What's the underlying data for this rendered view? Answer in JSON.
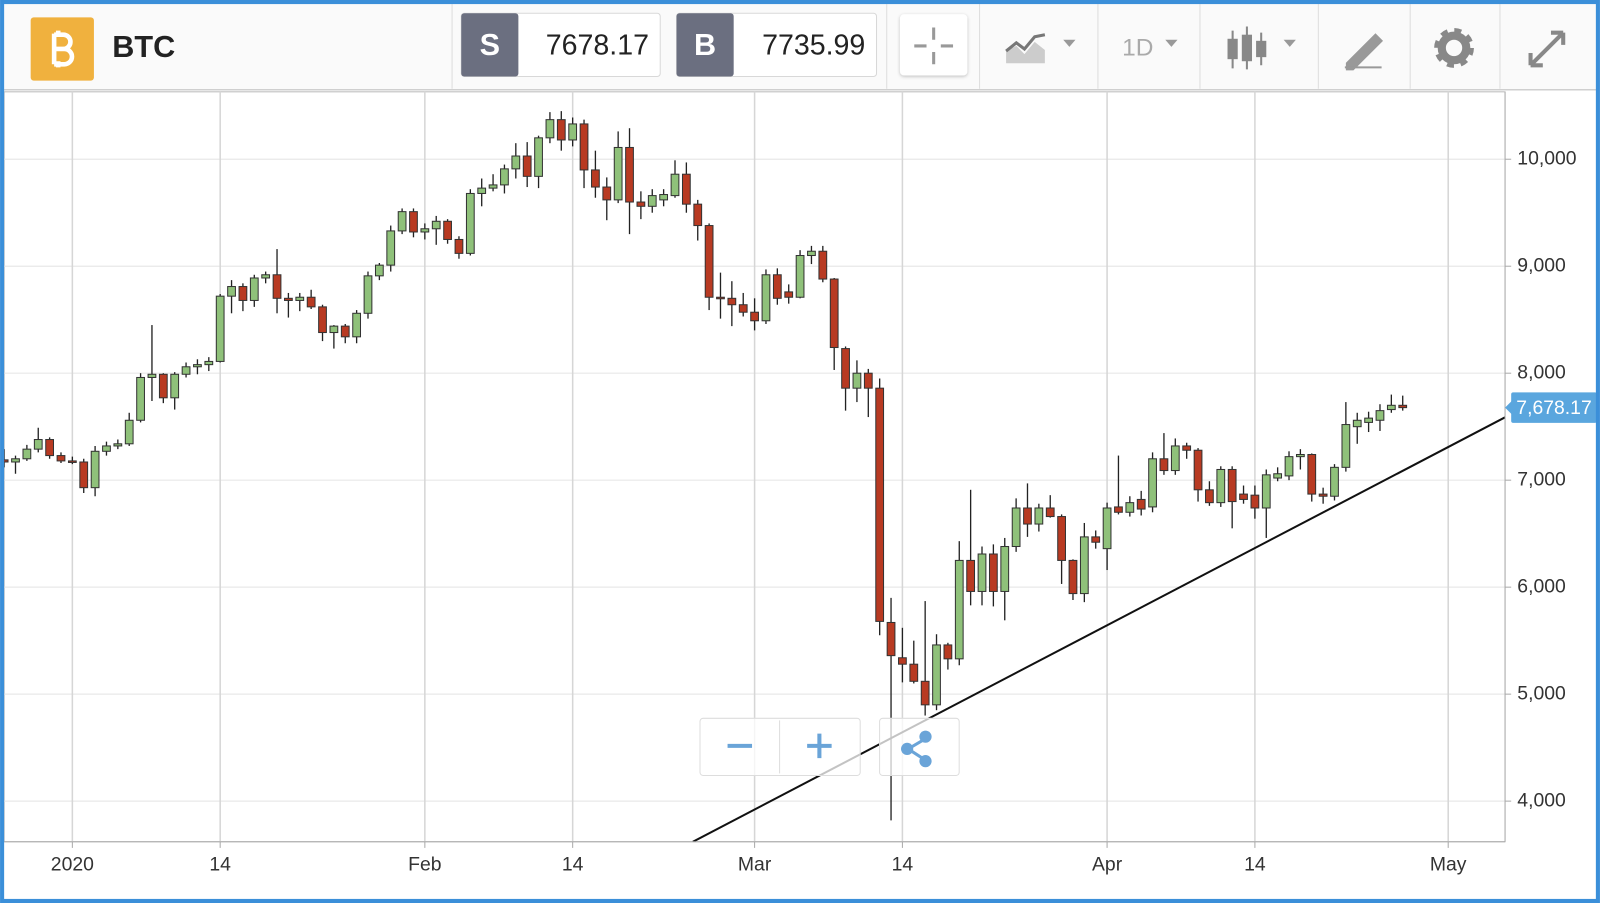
{
  "header": {
    "symbol": "BTC",
    "sell_label": "S",
    "sell": 7678.17,
    "buy_label": "B",
    "buy": 7735.99,
    "interval": "1D"
  },
  "chart_data": {
    "type": "candlestick",
    "grid": true,
    "up_color": "#8fc17a",
    "down_color": "#b83a22",
    "x": [
      "2019-12-26",
      "2019-12-27",
      "2019-12-28",
      "2019-12-29",
      "2019-12-30",
      "2019-12-31",
      "2020-01-01",
      "2020-01-02",
      "2020-01-03",
      "2020-01-04",
      "2020-01-05",
      "2020-01-06",
      "2020-01-07",
      "2020-01-08",
      "2020-01-09",
      "2020-01-10",
      "2020-01-11",
      "2020-01-12",
      "2020-01-13",
      "2020-01-14",
      "2020-01-15",
      "2020-01-16",
      "2020-01-17",
      "2020-01-18",
      "2020-01-19",
      "2020-01-20",
      "2020-01-21",
      "2020-01-22",
      "2020-01-23",
      "2020-01-24",
      "2020-01-25",
      "2020-01-26",
      "2020-01-27",
      "2020-01-28",
      "2020-01-29",
      "2020-01-30",
      "2020-01-31",
      "2020-02-01",
      "2020-02-02",
      "2020-02-03",
      "2020-02-04",
      "2020-02-05",
      "2020-02-06",
      "2020-02-07",
      "2020-02-08",
      "2020-02-09",
      "2020-02-10",
      "2020-02-11",
      "2020-02-12",
      "2020-02-13",
      "2020-02-14",
      "2020-02-15",
      "2020-02-16",
      "2020-02-17",
      "2020-02-18",
      "2020-02-19",
      "2020-02-20",
      "2020-02-21",
      "2020-02-22",
      "2020-02-23",
      "2020-02-24",
      "2020-02-25",
      "2020-02-26",
      "2020-02-27",
      "2020-02-28",
      "2020-02-29",
      "2020-03-01",
      "2020-03-02",
      "2020-03-03",
      "2020-03-04",
      "2020-03-05",
      "2020-03-06",
      "2020-03-07",
      "2020-03-08",
      "2020-03-09",
      "2020-03-10",
      "2020-03-11",
      "2020-03-12",
      "2020-03-13",
      "2020-03-14",
      "2020-03-15",
      "2020-03-16",
      "2020-03-17",
      "2020-03-18",
      "2020-03-19",
      "2020-03-20",
      "2020-03-21",
      "2020-03-22",
      "2020-03-23",
      "2020-03-24",
      "2020-03-25",
      "2020-03-26",
      "2020-03-27",
      "2020-03-28",
      "2020-03-29",
      "2020-03-30",
      "2020-03-31",
      "2020-04-01",
      "2020-04-02",
      "2020-04-03",
      "2020-04-04",
      "2020-04-05",
      "2020-04-06",
      "2020-04-07",
      "2020-04-08",
      "2020-04-09",
      "2020-04-10",
      "2020-04-11",
      "2020-04-12",
      "2020-04-13",
      "2020-04-14",
      "2020-04-15",
      "2020-04-16",
      "2020-04-17",
      "2020-04-18",
      "2020-04-19",
      "2020-04-20",
      "2020-04-21",
      "2020-04-22",
      "2020-04-23",
      "2020-04-24",
      "2020-04-25",
      "2020-04-26",
      "2020-04-27"
    ],
    "open": [
      7190,
      7170,
      7200,
      7290,
      7380,
      7230,
      7180,
      7170,
      6930,
      7270,
      7320,
      7340,
      7560,
      7960,
      7990,
      7770,
      7990,
      8060,
      8080,
      8110,
      8720,
      8810,
      8680,
      8890,
      8920,
      8700,
      8680,
      8710,
      8620,
      8380,
      8440,
      8340,
      8560,
      8910,
      9010,
      9330,
      9510,
      9320,
      9350,
      9420,
      9250,
      9120,
      9680,
      9730,
      9760,
      9910,
      10030,
      9840,
      10200,
      10370,
      10180,
      10330,
      9900,
      9740,
      9620,
      10110,
      9600,
      9560,
      9620,
      9660,
      9860,
      9580,
      9380,
      8710,
      8700,
      8640,
      8570,
      8490,
      8920,
      8760,
      8710,
      9100,
      9140,
      8880,
      8230,
      7860,
      8000,
      7860,
      5670,
      5340,
      5280,
      5120,
      4900,
      5460,
      5330,
      6250,
      5960,
      6310,
      5960,
      6380,
      6740,
      6590,
      6740,
      6660,
      6250,
      5940,
      6470,
      6360,
      6750,
      6700,
      6820,
      6750,
      7200,
      7090,
      7320,
      7280,
      6910,
      6790,
      7100,
      6870,
      6860,
      6740,
      7020,
      7040,
      7220,
      7240,
      6870,
      6850,
      7120,
      7500,
      7540,
      7560,
      7660,
      7700
    ],
    "high": [
      7290,
      7230,
      7330,
      7490,
      7400,
      7260,
      7220,
      7200,
      7320,
      7360,
      7380,
      7630,
      8000,
      8450,
      8000,
      8010,
      8100,
      8130,
      8150,
      8740,
      8870,
      8840,
      8920,
      8950,
      9160,
      8750,
      8750,
      8780,
      8640,
      8450,
      8460,
      8590,
      8950,
      9030,
      9380,
      9540,
      9540,
      9400,
      9470,
      9440,
      9280,
      9720,
      9820,
      9860,
      9950,
      10150,
      10160,
      10220,
      10440,
      10450,
      10390,
      10370,
      10080,
      9830,
      10260,
      10290,
      9700,
      9720,
      9720,
      9990,
      9970,
      9620,
      9400,
      8940,
      8860,
      8750,
      8700,
      8970,
      8980,
      8830,
      9150,
      9190,
      9190,
      8890,
      8250,
      8120,
      8040,
      7950,
      5900,
      5620,
      5500,
      5870,
      5560,
      5480,
      6430,
      6910,
      6380,
      6400,
      6460,
      6830,
      6970,
      6780,
      6860,
      6680,
      6260,
      6600,
      6530,
      6790,
      7230,
      6850,
      6900,
      7260,
      7440,
      7390,
      7350,
      7300,
      6990,
      7130,
      7130,
      6950,
      6950,
      7100,
      7120,
      7270,
      7290,
      7250,
      6930,
      7150,
      7730,
      7630,
      7640,
      7710,
      7800,
      7790
    ],
    "low": [
      7120,
      7060,
      7180,
      7260,
      7200,
      7160,
      7150,
      6880,
      6850,
      7230,
      7290,
      7320,
      7540,
      7740,
      7720,
      7660,
      7960,
      7990,
      8020,
      8100,
      8560,
      8580,
      8620,
      8840,
      8560,
      8520,
      8580,
      8600,
      8300,
      8230,
      8280,
      8280,
      8510,
      8870,
      8950,
      9300,
      9270,
      9250,
      9200,
      9210,
      9070,
      9100,
      9560,
      9700,
      9680,
      9820,
      9740,
      9730,
      10150,
      10080,
      10120,
      9730,
      9640,
      9430,
      9590,
      9300,
      9440,
      9500,
      9560,
      9640,
      9500,
      9240,
      8590,
      8510,
      8440,
      8530,
      8400,
      8460,
      8640,
      8650,
      8700,
      9020,
      8850,
      8030,
      7650,
      7730,
      7590,
      5550,
      3820,
      5110,
      5100,
      4800,
      4850,
      5230,
      5270,
      5830,
      5830,
      5820,
      5690,
      6330,
      6470,
      6520,
      6650,
      6030,
      5880,
      5860,
      6360,
      6160,
      6680,
      6660,
      6670,
      6700,
      7050,
      7050,
      7200,
      6800,
      6760,
      6750,
      6550,
      6780,
      6640,
      6460,
      6990,
      7000,
      7100,
      6800,
      6780,
      6810,
      7080,
      7340,
      7450,
      7460,
      7630,
      7650
    ],
    "close": [
      7170,
      7200,
      7290,
      7380,
      7230,
      7180,
      7170,
      6930,
      7270,
      7320,
      7340,
      7560,
      7960,
      7990,
      7770,
      7990,
      8060,
      8080,
      8110,
      8720,
      8810,
      8680,
      8890,
      8920,
      8700,
      8680,
      8710,
      8620,
      8380,
      8440,
      8340,
      8560,
      8910,
      9010,
      9330,
      9510,
      9320,
      9350,
      9420,
      9250,
      9120,
      9680,
      9730,
      9760,
      9910,
      10030,
      9840,
      10200,
      10370,
      10180,
      10330,
      9900,
      9740,
      9620,
      10110,
      9600,
      9560,
      9660,
      9670,
      9860,
      9580,
      9380,
      8710,
      8700,
      8640,
      8570,
      8490,
      8920,
      8700,
      8710,
      9100,
      9140,
      8880,
      8240,
      7860,
      8000,
      7860,
      5680,
      5360,
      5280,
      5120,
      4900,
      5460,
      5330,
      6250,
      5960,
      6310,
      5960,
      6380,
      6740,
      6590,
      6740,
      6660,
      6250,
      5940,
      6470,
      6420,
      6740,
      6700,
      6790,
      6730,
      7200,
      7090,
      7320,
      7280,
      6910,
      6790,
      7100,
      6800,
      6820,
      6740,
      7050,
      7060,
      7220,
      7240,
      6870,
      6850,
      7120,
      7520,
      7560,
      7580,
      7650,
      7700,
      7678.17
    ],
    "xlim": [
      "2019-12-26",
      "2020-05-06"
    ],
    "xticks": [
      {
        "value": "2020-01-01",
        "label": "2020"
      },
      {
        "value": "2020-01-14",
        "label": "14"
      },
      {
        "value": "2020-02-01",
        "label": "Feb"
      },
      {
        "value": "2020-02-14",
        "label": "14"
      },
      {
        "value": "2020-03-01",
        "label": "Mar"
      },
      {
        "value": "2020-03-14",
        "label": "14"
      },
      {
        "value": "2020-04-01",
        "label": "Apr"
      },
      {
        "value": "2020-04-14",
        "label": "14"
      },
      {
        "value": "2020-05-01",
        "label": "May"
      }
    ],
    "ylim": [
      3620,
      10630
    ],
    "yticks": [
      {
        "value": 4000,
        "label": "4,000"
      },
      {
        "value": 5000,
        "label": "5,000"
      },
      {
        "value": 6000,
        "label": "6,000"
      },
      {
        "value": 7000,
        "label": "7,000"
      },
      {
        "value": 8000,
        "label": "8,000"
      },
      {
        "value": 9000,
        "label": "9,000"
      },
      {
        "value": 10000,
        "label": "10,000"
      }
    ],
    "last_price": 7678.17,
    "last_price_label": "7,678.17"
  }
}
